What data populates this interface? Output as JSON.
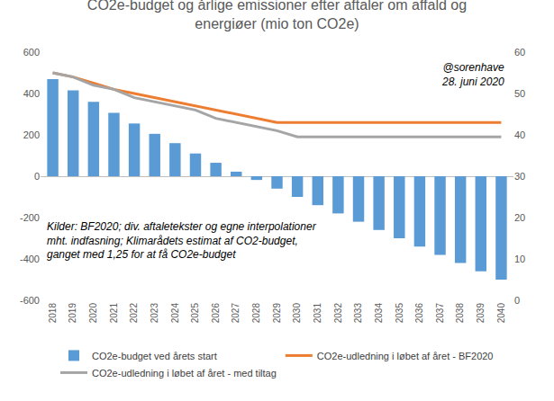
{
  "chart_data": {
    "type": "bar",
    "title": "CO2e-budget og årlige emissioner efter aftaler om affald og energiøer (mio ton CO2e)",
    "categories": [
      "2018",
      "2019",
      "2020",
      "2021",
      "2022",
      "2023",
      "2024",
      "2025",
      "2026",
      "2027",
      "2028",
      "2029",
      "2030",
      "2031",
      "2032",
      "2033",
      "2034",
      "2035",
      "2036",
      "2037",
      "2038",
      "2039",
      "2040"
    ],
    "series": [
      {
        "name": "CO2e-budget ved årets start",
        "type": "bar",
        "color": "#5b9bd5",
        "values": [
          470,
          415,
          360,
          307,
          255,
          205,
          160,
          110,
          65,
          22,
          -18,
          -60,
          -100,
          -140,
          -180,
          -220,
          -260,
          -300,
          -340,
          -380,
          -420,
          -460,
          -500
        ]
      },
      {
        "name": "CO2e-udledning i løbet af året - BF2020",
        "type": "line",
        "axis": "y2",
        "color": "#ed7d31",
        "values": [
          55,
          54,
          52.5,
          51,
          50,
          49,
          48,
          47,
          46,
          45,
          44,
          43,
          43,
          43,
          43,
          43,
          43,
          43,
          43,
          43,
          43,
          43,
          43
        ]
      },
      {
        "name": "CO2e-udledning i løbet af året - med tiltag",
        "type": "line",
        "axis": "y2",
        "color": "#a5a5a5",
        "values": [
          55,
          54,
          52,
          51,
          49,
          48,
          47,
          46,
          44,
          43,
          42,
          41,
          39.5,
          39.5,
          39.5,
          39.5,
          39.5,
          39.5,
          39.5,
          39.5,
          39.5,
          39.5,
          39.5
        ]
      }
    ],
    "ylim": [
      -600,
      600
    ],
    "yticks": [
      -600,
      -400,
      -200,
      0,
      200,
      400,
      600
    ],
    "y2lim": [
      0,
      60
    ],
    "y2ticks": [
      0,
      10,
      20,
      30,
      40,
      50,
      60
    ],
    "grid": false,
    "legend": "bottom",
    "annotations": [
      {
        "text": [
          "@sorenhave",
          "28. juni 2020"
        ]
      },
      {
        "text": [
          "Kilder: BF2020; div. aftaletekster og egne interpolationer",
          "mht. indfasning; Klimarådets estimat af CO2-budget,",
          "ganget med 1,25 for at få CO2e-budget"
        ]
      }
    ]
  }
}
